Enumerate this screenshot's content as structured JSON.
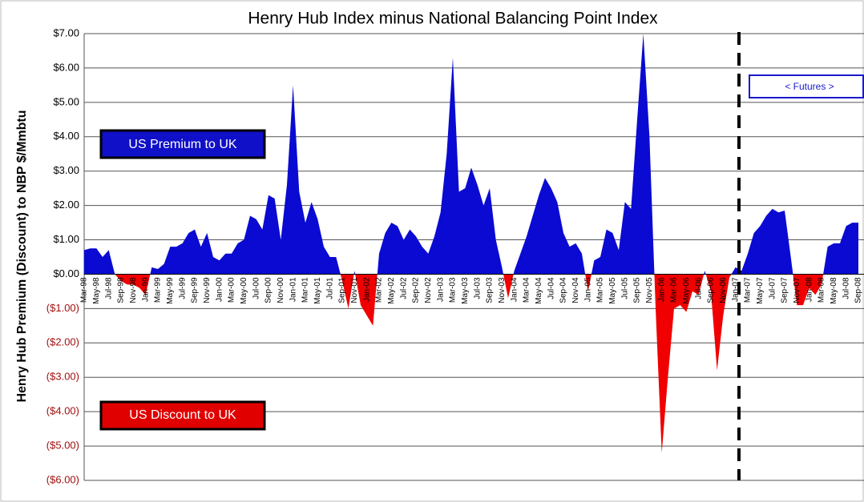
{
  "chart_data": {
    "type": "area",
    "title": "Henry Hub Index minus National Balancing Point Index",
    "y_label": "Henry Hub Premium (Discount) to NBP $/Mmbtu",
    "annotations": [
      "US Premium to UK",
      "US Discount to UK",
      "< Futures >"
    ],
    "categories": [
      "Mar-98",
      null,
      "May-98",
      null,
      "Jul-98",
      null,
      "Sep-98",
      null,
      "Nov-98",
      null,
      "Jan-99",
      null,
      "Mar-99",
      null,
      "May-99",
      null,
      "Jul-99",
      null,
      "Sep-99",
      null,
      "Nov-99",
      null,
      "Jan-00",
      null,
      "Mar-00",
      null,
      "May-00",
      null,
      "Jul-00",
      null,
      "Sep-00",
      null,
      "Nov-00",
      null,
      "Jan-01",
      null,
      "Mar-01",
      null,
      "May-01",
      null,
      "Jul-01",
      null,
      "Sep-01",
      null,
      "Nov-01",
      null,
      "Jan-02",
      null,
      "Mar-02",
      null,
      "May-02",
      null,
      "Jul-02",
      null,
      "Sep-02",
      null,
      "Nov-02",
      null,
      "Jan-03",
      null,
      "Mar-03",
      null,
      "May-03",
      null,
      "Jul-03",
      null,
      "Sep-03",
      null,
      "Nov-03",
      null,
      "Jan-04",
      null,
      "Mar-04",
      null,
      "May-04",
      null,
      "Jul-04",
      null,
      "Sep-04",
      null,
      "Nov-04",
      null,
      "Jan-05",
      null,
      "Mar-05",
      null,
      "May-05",
      null,
      "Jul-05",
      null,
      "Sep-05",
      null,
      "Nov-05",
      null,
      "Jan-06",
      null,
      "Mar-06",
      null,
      "May-06",
      null,
      "Jul-06",
      null,
      "Sep-06",
      null,
      "Nov-06",
      null,
      "Jan-07",
      null,
      "Mar-07",
      null,
      "May-07",
      null,
      "Jul-07",
      null,
      "Sep-07",
      null,
      "Nov-07",
      null,
      "Jan-08",
      null,
      "Mar-08",
      null,
      "May-08",
      null,
      "Jul-08",
      null,
      "Sep-08"
    ],
    "series": [
      {
        "color": "#0a0ad2",
        "negative_color": "#f00000",
        "values": [
          0.7,
          0.75,
          0.75,
          0.5,
          0.7,
          0,
          -0.2,
          -0.3,
          -0.3,
          -0.4,
          -0.6,
          0.2,
          0.15,
          0.3,
          0.8,
          0.8,
          0.9,
          1.2,
          1.3,
          0.8,
          1.2,
          0.5,
          0.4,
          0.6,
          0.6,
          0.9,
          1.0,
          1.7,
          1.6,
          1.3,
          2.3,
          2.2,
          1.0,
          2.6,
          5.5,
          2.4,
          1.5,
          2.1,
          1.6,
          0.8,
          0.5,
          0.5,
          -0.2,
          -1.0,
          0.1,
          -0.9,
          -1.2,
          -1.5,
          0.6,
          1.2,
          1.5,
          1.4,
          1.0,
          1.3,
          1.1,
          0.8,
          0.6,
          1.1,
          1.8,
          3.5,
          6.3,
          2.4,
          2.5,
          3.1,
          2.6,
          2.0,
          2.5,
          1.0,
          0.2,
          -0.7,
          0.1,
          0.6,
          1.1,
          1.7,
          2.3,
          2.8,
          2.5,
          2.1,
          1.2,
          0.8,
          0.9,
          0.6,
          -0.5,
          0.4,
          0.5,
          1.3,
          1.2,
          0.7,
          2.1,
          1.9,
          4.5,
          7.0,
          4.0,
          -1.0,
          -5.2,
          -3.0,
          -1.0,
          -0.9,
          -1.1,
          -0.5,
          -0.6,
          0.1,
          -0.5,
          -2.8,
          -1.2,
          -0.1,
          0.2,
          0.1,
          0.6,
          1.2,
          1.4,
          1.7,
          1.9,
          1.8,
          1.85,
          0.5,
          -0.9,
          -0.9,
          -0.4,
          -0.6,
          -0.3,
          0.8,
          0.9,
          0.9,
          1.4,
          1.5,
          1.5
        ]
      }
    ],
    "ylim": [
      -6,
      7
    ],
    "yticks": [
      {
        "value": -6,
        "label": "($6.00)"
      },
      {
        "value": -5,
        "label": "($5.00)"
      },
      {
        "value": -4,
        "label": "($4.00)"
      },
      {
        "value": -3,
        "label": "($3.00)"
      },
      {
        "value": -2,
        "label": "($2.00)"
      },
      {
        "value": -1,
        "label": "($1.00)"
      },
      {
        "value": 0,
        "label": "$0.00"
      },
      {
        "value": 1,
        "label": "$1.00"
      },
      {
        "value": 2,
        "label": "$2.00"
      },
      {
        "value": 3,
        "label": "$3.00"
      },
      {
        "value": 4,
        "label": "$4.00"
      },
      {
        "value": 5,
        "label": "$5.00"
      },
      {
        "value": 6,
        "label": "$6.00"
      },
      {
        "value": 7,
        "label": "$7.00"
      }
    ],
    "grid": true
  }
}
